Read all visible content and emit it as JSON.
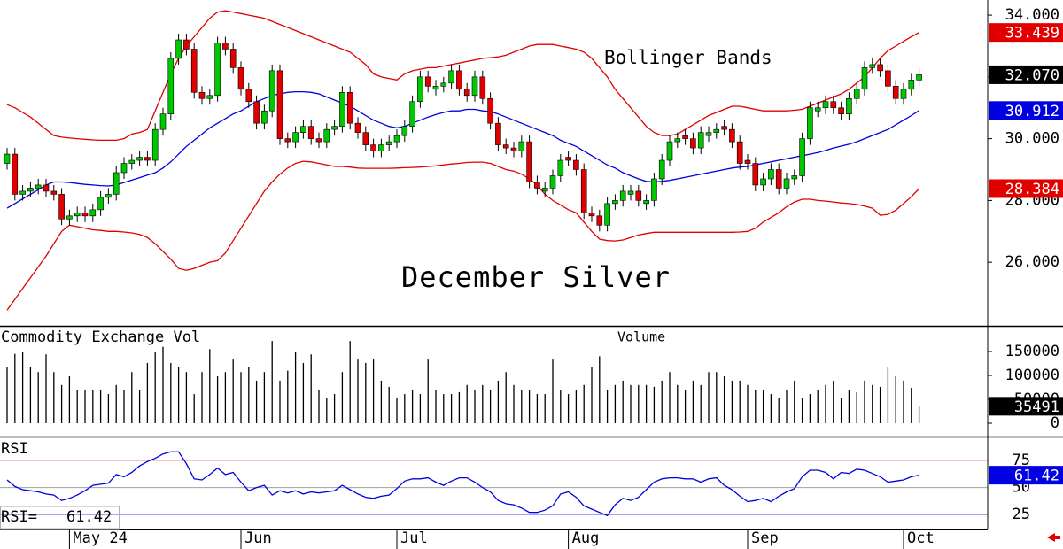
{
  "chart_data": [
    {
      "type": "candlestick",
      "title": "December Silver",
      "annotation": "Bollinger Bands",
      "categories": [
        null,
        null,
        null,
        null,
        null,
        null,
        null,
        null,
        "May 24",
        null,
        null,
        null,
        null,
        null,
        null,
        null,
        null,
        null,
        null,
        null,
        null,
        null,
        null,
        null,
        null,
        null,
        null,
        null,
        null,
        null,
        "Jun",
        null,
        null,
        null,
        null,
        null,
        null,
        null,
        null,
        null,
        null,
        null,
        null,
        null,
        null,
        null,
        null,
        null,
        null,
        null,
        "Jul",
        null,
        null,
        null,
        null,
        null,
        null,
        null,
        null,
        null,
        null,
        null,
        null,
        null,
        null,
        null,
        null,
        null,
        null,
        null,
        null,
        null,
        "Aug",
        null,
        null,
        null,
        null,
        null,
        null,
        null,
        null,
        null,
        null,
        null,
        null,
        null,
        null,
        null,
        null,
        null,
        null,
        null,
        null,
        null,
        null,
        "Sep",
        null,
        null,
        null,
        null,
        null,
        null,
        null,
        null,
        null,
        null,
        null,
        null,
        null,
        null,
        null,
        null,
        null,
        null,
        null,
        "Oct",
        null,
        null
      ],
      "open": [
        29.2,
        29.5,
        28.2,
        28.3,
        28.4,
        28.5,
        28.3,
        28.2,
        27.4,
        27.5,
        27.6,
        27.5,
        27.7,
        28.1,
        28.2,
        28.9,
        29.2,
        29.3,
        29.4,
        29.3,
        30.3,
        30.8,
        32.6,
        33.2,
        32.9,
        31.5,
        31.3,
        31.4,
        33.1,
        32.9,
        32.3,
        31.6,
        31.2,
        30.5,
        30.9,
        32.2,
        30.0,
        29.9,
        30.2,
        30.4,
        30.0,
        29.9,
        30.3,
        30.4,
        31.5,
        30.5,
        30.2,
        29.8,
        29.6,
        29.8,
        29.9,
        30.1,
        30.4,
        31.2,
        32.0,
        31.6,
        31.7,
        31.8,
        32.2,
        31.6,
        31.4,
        32.0,
        31.3,
        30.5,
        29.8,
        29.7,
        29.6,
        29.9,
        28.6,
        28.3,
        28.4,
        28.8,
        29.4,
        29.3,
        29.0,
        27.6,
        27.5,
        27.2,
        27.9,
        28.0,
        28.2,
        28.3,
        27.9,
        28.0,
        28.7,
        29.3,
        29.9,
        30.1,
        30.0,
        29.7,
        30.1,
        30.2,
        30.4,
        30.3,
        29.9,
        29.3,
        29.2,
        28.5,
        28.7,
        29.0,
        28.4,
        28.7,
        28.8,
        30.0,
        30.9,
        31.0,
        31.2,
        31.0,
        30.8,
        31.3,
        31.6,
        32.3,
        32.4,
        32.2,
        31.7,
        31.3,
        31.6,
        31.9
      ],
      "high": [
        29.7,
        29.7,
        28.5,
        28.6,
        28.7,
        28.7,
        28.5,
        28.4,
        27.7,
        27.8,
        27.8,
        27.9,
        28.3,
        28.4,
        29.1,
        29.4,
        29.5,
        29.6,
        29.6,
        30.5,
        31.0,
        32.8,
        33.4,
        33.4,
        33.1,
        31.7,
        31.6,
        33.3,
        33.3,
        33.1,
        32.5,
        31.8,
        31.4,
        31.1,
        32.4,
        32.4,
        30.2,
        30.4,
        30.6,
        30.6,
        30.2,
        30.5,
        30.6,
        31.7,
        31.7,
        30.7,
        30.4,
        30.0,
        30.0,
        30.1,
        30.3,
        30.6,
        31.4,
        32.2,
        32.2,
        31.9,
        32.0,
        32.4,
        32.4,
        31.8,
        32.2,
        32.2,
        31.5,
        30.7,
        30.0,
        29.9,
        30.1,
        30.1,
        28.8,
        28.6,
        29.0,
        29.5,
        29.6,
        29.5,
        29.2,
        27.8,
        27.7,
        28.1,
        28.2,
        28.5,
        28.5,
        28.5,
        28.2,
        28.9,
        29.5,
        30.1,
        30.2,
        30.3,
        30.2,
        30.4,
        30.4,
        30.5,
        30.6,
        30.5,
        30.1,
        29.5,
        29.4,
        28.9,
        29.2,
        29.2,
        28.9,
        29.0,
        30.2,
        31.2,
        31.2,
        31.4,
        31.4,
        31.2,
        31.5,
        31.8,
        32.5,
        32.6,
        32.6,
        32.4,
        31.9,
        31.8,
        32.1,
        32.27
      ],
      "low": [
        29.0,
        28.0,
        28.0,
        28.1,
        28.2,
        28.1,
        28.0,
        27.2,
        27.2,
        27.3,
        27.3,
        27.3,
        27.5,
        27.9,
        28.0,
        28.7,
        29.0,
        29.1,
        29.1,
        29.1,
        30.1,
        30.6,
        32.4,
        32.7,
        31.3,
        31.1,
        31.1,
        31.2,
        32.7,
        32.1,
        31.4,
        31.0,
        30.3,
        30.3,
        30.7,
        29.8,
        29.7,
        29.7,
        30.0,
        29.8,
        29.7,
        29.7,
        30.1,
        30.2,
        30.3,
        30.0,
        29.6,
        29.4,
        29.4,
        29.6,
        29.7,
        29.9,
        30.2,
        31.0,
        31.5,
        31.4,
        31.5,
        31.6,
        31.4,
        31.2,
        31.2,
        31.1,
        30.3,
        29.6,
        29.5,
        29.4,
        29.4,
        28.4,
        28.2,
        28.1,
        28.2,
        28.6,
        29.1,
        28.8,
        27.4,
        27.3,
        27.0,
        27.0,
        27.7,
        27.8,
        28.0,
        27.8,
        27.7,
        27.8,
        28.5,
        29.1,
        29.7,
        29.8,
        29.5,
        29.5,
        29.9,
        30.0,
        30.1,
        29.7,
        29.0,
        29.0,
        28.3,
        28.3,
        28.5,
        28.2,
        28.2,
        28.5,
        28.6,
        29.8,
        30.7,
        30.8,
        30.8,
        30.6,
        30.6,
        31.1,
        31.4,
        32.1,
        32.0,
        31.5,
        31.1,
        31.1,
        31.4,
        31.7
      ],
      "close": [
        29.5,
        28.2,
        28.3,
        28.4,
        28.5,
        28.3,
        28.2,
        27.4,
        27.5,
        27.6,
        27.5,
        27.7,
        28.1,
        28.2,
        28.9,
        29.2,
        29.3,
        29.4,
        29.3,
        30.3,
        30.8,
        32.6,
        33.2,
        32.9,
        31.5,
        31.3,
        31.4,
        33.1,
        32.9,
        32.3,
        31.6,
        31.2,
        30.5,
        30.9,
        32.2,
        30.0,
        29.9,
        30.2,
        30.4,
        30.0,
        29.9,
        30.3,
        30.4,
        31.5,
        30.5,
        30.2,
        29.8,
        29.6,
        29.8,
        29.9,
        30.1,
        30.4,
        31.2,
        32.0,
        31.7,
        31.7,
        31.8,
        32.2,
        31.6,
        31.4,
        32.0,
        31.3,
        30.5,
        29.8,
        29.7,
        29.6,
        29.9,
        28.6,
        28.4,
        28.4,
        28.8,
        29.3,
        29.3,
        29.0,
        27.6,
        27.5,
        27.2,
        27.9,
        28.0,
        28.3,
        28.3,
        28.0,
        28.0,
        28.7,
        29.3,
        29.9,
        30.0,
        30.0,
        29.7,
        30.2,
        30.2,
        30.3,
        30.3,
        29.9,
        29.2,
        29.2,
        28.5,
        28.7,
        29.0,
        28.4,
        28.7,
        28.8,
        30.0,
        31.0,
        31.0,
        31.2,
        31.0,
        30.8,
        31.3,
        31.6,
        32.3,
        32.4,
        32.2,
        31.7,
        31.3,
        31.6,
        31.9,
        32.07
      ],
      "close_label": "32.070",
      "color_up": "#00c800",
      "color_down": "#e00000",
      "close_color": "#000000",
      "series": [
        {
          "color": "#e00000",
          "last_label": "33.439",
          "values": [
            31.1,
            31.0,
            30.85,
            30.7,
            30.5,
            30.3,
            30.1,
            30.05,
            30.02,
            30.0,
            29.98,
            29.96,
            29.95,
            29.95,
            29.95,
            30.0,
            30.15,
            30.2,
            30.3,
            30.9,
            31.5,
            32.1,
            32.6,
            33.0,
            33.3,
            33.6,
            33.9,
            34.1,
            34.14,
            34.1,
            34.05,
            34.0,
            33.95,
            33.9,
            33.8,
            33.7,
            33.6,
            33.5,
            33.4,
            33.3,
            33.2,
            33.1,
            33.0,
            32.9,
            32.8,
            32.6,
            32.4,
            32.1,
            32.0,
            31.95,
            31.9,
            32.1,
            32.2,
            32.25,
            32.3,
            32.3,
            32.35,
            32.4,
            32.45,
            32.5,
            32.55,
            32.6,
            32.62,
            32.65,
            32.7,
            32.8,
            32.9,
            33.0,
            33.05,
            33.05,
            33.05,
            33.0,
            32.95,
            32.9,
            32.8,
            32.6,
            32.3,
            32.0,
            31.6,
            31.3,
            31.0,
            30.7,
            30.4,
            30.2,
            30.1,
            30.1,
            30.15,
            30.3,
            30.45,
            30.6,
            30.75,
            30.85,
            30.95,
            31.05,
            31.05,
            31.0,
            30.95,
            30.9,
            30.9,
            30.9,
            30.9,
            30.92,
            30.95,
            31.05,
            31.15,
            31.25,
            31.35,
            31.45,
            31.6,
            31.8,
            32.0,
            32.3,
            32.6,
            32.85,
            33.0,
            33.15,
            33.3,
            33.439
          ]
        },
        {
          "color": "#0000e0",
          "last_label": "30.912",
          "values": [
            27.75,
            27.9,
            28.05,
            28.2,
            28.35,
            28.5,
            28.6,
            28.6,
            28.58,
            28.55,
            28.52,
            28.5,
            28.48,
            28.47,
            28.5,
            28.58,
            28.66,
            28.74,
            28.82,
            28.9,
            29.05,
            29.25,
            29.5,
            29.75,
            29.95,
            30.15,
            30.35,
            30.5,
            30.65,
            30.8,
            30.9,
            31.05,
            31.2,
            31.3,
            31.4,
            31.45,
            31.5,
            31.52,
            31.52,
            31.5,
            31.45,
            31.35,
            31.25,
            31.15,
            31.05,
            30.9,
            30.75,
            30.6,
            30.5,
            30.4,
            30.35,
            30.4,
            30.5,
            30.6,
            30.7,
            30.78,
            30.85,
            30.9,
            30.9,
            30.95,
            30.95,
            30.9,
            30.88,
            30.8,
            30.7,
            30.6,
            30.5,
            30.4,
            30.3,
            30.2,
            30.1,
            29.95,
            29.85,
            29.75,
            29.6,
            29.45,
            29.3,
            29.15,
            29.05,
            28.9,
            28.8,
            28.7,
            28.62,
            28.6,
            28.62,
            28.65,
            28.7,
            28.75,
            28.8,
            28.85,
            28.9,
            28.95,
            29.0,
            29.05,
            29.08,
            29.1,
            29.15,
            29.2,
            29.25,
            29.3,
            29.35,
            29.4,
            29.45,
            29.5,
            29.55,
            29.62,
            29.7,
            29.76,
            29.82,
            29.9,
            30.0,
            30.1,
            30.2,
            30.3,
            30.45,
            30.6,
            30.75,
            30.912
          ]
        },
        {
          "color": "#e00000",
          "last_label": "28.384",
          "values": [
            24.45,
            24.8,
            25.15,
            25.5,
            25.85,
            26.2,
            26.6,
            27.0,
            27.2,
            27.15,
            27.1,
            27.05,
            27.03,
            27.0,
            27.0,
            26.98,
            26.95,
            26.9,
            26.8,
            26.6,
            26.35,
            26.1,
            25.8,
            25.74,
            25.8,
            25.9,
            26.0,
            26.05,
            26.3,
            26.7,
            27.1,
            27.5,
            27.9,
            28.3,
            28.6,
            28.85,
            29.05,
            29.2,
            29.27,
            29.25,
            29.2,
            29.15,
            29.1,
            29.1,
            29.08,
            29.05,
            29.04,
            29.04,
            29.04,
            29.04,
            29.05,
            29.06,
            29.07,
            29.08,
            29.1,
            29.12,
            29.15,
            29.18,
            29.2,
            29.23,
            29.24,
            29.24,
            29.2,
            29.1,
            29.0,
            28.95,
            28.85,
            28.7,
            28.5,
            28.2,
            28.0,
            27.85,
            27.7,
            27.6,
            27.3,
            27.0,
            26.75,
            26.7,
            26.69,
            26.72,
            26.8,
            26.88,
            26.93,
            26.97,
            26.97,
            26.97,
            26.97,
            26.97,
            26.97,
            26.97,
            26.97,
            26.97,
            26.97,
            26.97,
            26.98,
            27.0,
            27.1,
            27.3,
            27.45,
            27.6,
            27.8,
            27.95,
            28.04,
            28.04,
            28.0,
            27.98,
            27.95,
            27.92,
            27.9,
            27.87,
            27.82,
            27.75,
            27.52,
            27.55,
            27.68,
            27.9,
            28.12,
            28.384
          ]
        }
      ],
      "ylim": [
        23.94,
        34.49
      ],
      "yticks": [
        {
          "value": 26,
          "label": "26.000"
        },
        {
          "value": 28,
          "label": "28.000"
        },
        {
          "value": 30,
          "label": "30.000"
        },
        {
          "value": 32,
          "label": "32.000"
        },
        {
          "value": 34,
          "label": "34.000"
        }
      ]
    },
    {
      "type": "bar",
      "title": "Commodity Exchange Vol",
      "annotation": "Volume",
      "color": "#000000",
      "last_color": "#000000",
      "values": [
        117000,
        145000,
        150000,
        117000,
        107000,
        144000,
        107000,
        80000,
        98000,
        70000,
        70000,
        70000,
        70000,
        61000,
        80000,
        70000,
        107000,
        70000,
        126000,
        150000,
        160000,
        126000,
        117000,
        107000,
        61000,
        107000,
        155000,
        98000,
        107000,
        135000,
        107000,
        117000,
        89000,
        107000,
        172000,
        89000,
        110000,
        150000,
        126000,
        144000,
        70000,
        52000,
        61000,
        107000,
        172000,
        135000,
        126000,
        135000,
        89000,
        76000,
        52000,
        61000,
        70000,
        61000,
        135000,
        70000,
        61000,
        61000,
        65000,
        80000,
        70000,
        80000,
        70000,
        89000,
        107000,
        80000,
        70000,
        70000,
        61000,
        61000,
        135000,
        70000,
        61000,
        70000,
        80000,
        117000,
        140000,
        70000,
        80000,
        89000,
        80000,
        80000,
        80000,
        76000,
        89000,
        107000,
        80000,
        70000,
        89000,
        80000,
        107000,
        107000,
        98000,
        89000,
        89000,
        80000,
        70000,
        70000,
        61000,
        52000,
        70000,
        89000,
        52000,
        61000,
        70000,
        80000,
        89000,
        52000,
        70000,
        65000,
        89000,
        80000,
        76000,
        117000,
        98000,
        89000,
        74000,
        35491
      ],
      "ylim": [
        0,
        200000
      ],
      "yticks": [
        0,
        50000,
        100000,
        150000
      ]
    },
    {
      "type": "line",
      "title": "RSI",
      "readout_label": "RSI=",
      "color": "#0000e0",
      "values": [
        57,
        51,
        48,
        47,
        46,
        44,
        43,
        38,
        40,
        43,
        47,
        52,
        53,
        54,
        62,
        60,
        64,
        70,
        74,
        77,
        81,
        83,
        83,
        72,
        58,
        57,
        62,
        68,
        62,
        64,
        55,
        47,
        50,
        52,
        43,
        47,
        45,
        47,
        44,
        46,
        45,
        46,
        47,
        52,
        48,
        44,
        41,
        40,
        42,
        43,
        49,
        56,
        58,
        58,
        59,
        55,
        52,
        56,
        59,
        59,
        55,
        50,
        46,
        38,
        35,
        34,
        31,
        27,
        27,
        29,
        33,
        44,
        46,
        41,
        33,
        30,
        27,
        24,
        34,
        40,
        38,
        41,
        48,
        55,
        58,
        59,
        59,
        58,
        58,
        55,
        58,
        59,
        52,
        48,
        42,
        37,
        38,
        40,
        37,
        42,
        46,
        49,
        60,
        66,
        66,
        64,
        58,
        64,
        63,
        67,
        66,
        63,
        60,
        55,
        56,
        57,
        60,
        61.42
      ],
      "ylim": [
        12,
        95.5
      ],
      "yticks": [
        25,
        50,
        75
      ],
      "grid": true,
      "grid_colors": [
        "#6a6aff",
        "#a0a0a0",
        "#ff8080"
      ]
    }
  ]
}
